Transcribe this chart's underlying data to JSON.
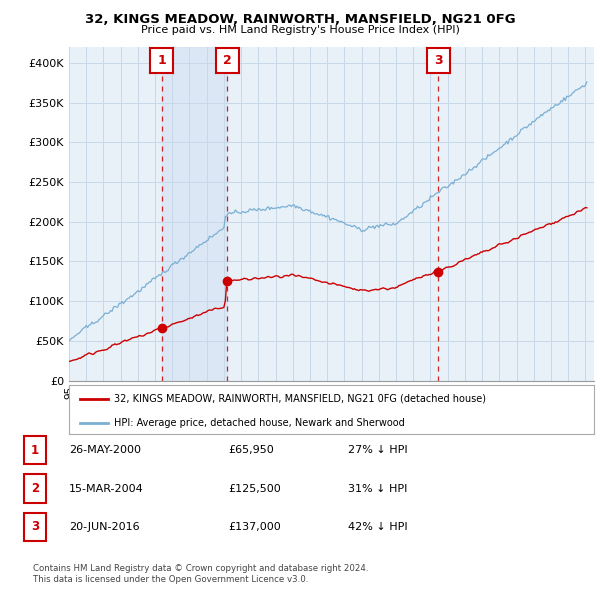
{
  "title": "32, KINGS MEADOW, RAINWORTH, MANSFIELD, NG21 0FG",
  "subtitle": "Price paid vs. HM Land Registry's House Price Index (HPI)",
  "legend_property": "32, KINGS MEADOW, RAINWORTH, MANSFIELD, NG21 0FG (detached house)",
  "legend_hpi": "HPI: Average price, detached house, Newark and Sherwood",
  "footer1": "Contains HM Land Registry data © Crown copyright and database right 2024.",
  "footer2": "This data is licensed under the Open Government Licence v3.0.",
  "transactions": [
    {
      "num": 1,
      "date": "26-MAY-2000",
      "price": "£65,950",
      "pct": "27% ↓ HPI",
      "year": 2000.375
    },
    {
      "num": 2,
      "date": "15-MAR-2004",
      "price": "£125,500",
      "pct": "31% ↓ HPI",
      "year": 2004.208
    },
    {
      "num": 3,
      "date": "20-JUN-2016",
      "price": "£137,000",
      "pct": "42% ↓ HPI",
      "year": 2016.458
    }
  ],
  "sale_prices": [
    65950,
    125500,
    137000
  ],
  "property_color": "#cc0000",
  "hpi_color": "#7bafd4",
  "shade_color": "#ddeeff",
  "background_color": "#e8f0f8",
  "grid_color": "#c8d8e8",
  "ylim": [
    0,
    420000
  ],
  "yticks": [
    0,
    50000,
    100000,
    150000,
    200000,
    250000,
    300000,
    350000,
    400000
  ],
  "ytick_labels": [
    "£0",
    "£50K",
    "£100K",
    "£150K",
    "£200K",
    "£250K",
    "£300K",
    "£350K",
    "£400K"
  ],
  "xstart": 1995,
  "xend": 2025
}
